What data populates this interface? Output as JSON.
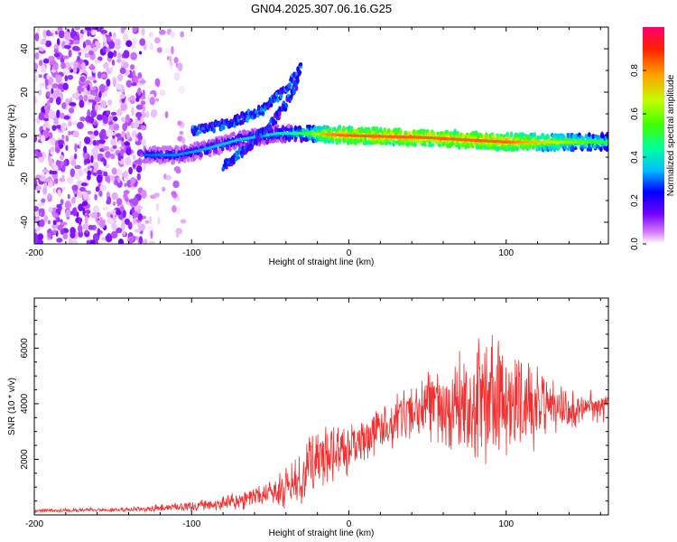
{
  "figure_title": "GN04.2025.307.06.16.G25",
  "colors": {
    "snr_line": "#f03030",
    "background": "#ffffff",
    "frame": "#000000"
  },
  "chart_data": [
    {
      "type": "heatmap",
      "title": "GN04.2025.307.06.16.G25",
      "xlabel": "Height of straight line (km)",
      "ylabel": "Frequency (Hz)",
      "xlim": [
        -200,
        165
      ],
      "ylim": [
        -50,
        50
      ],
      "x_ticks": [
        -200,
        -100,
        0,
        100
      ],
      "y_ticks": [
        -40,
        -20,
        0,
        20,
        40
      ],
      "colorbar": {
        "label": "Normalized spectral amplitude",
        "range": [
          0,
          1
        ],
        "ticks": [
          0,
          0.2,
          0.4,
          0.6,
          0.8
        ],
        "tick_labels": [
          "0.0",
          "0.2",
          "0.4",
          "0.6",
          "0.8"
        ],
        "colormap": [
          "#ffffff",
          "#d070ff",
          "#7000ff",
          "#0000ff",
          "#00c0ff",
          "#00ffa0",
          "#40ff00",
          "#c0ff00",
          "#ffa000",
          "#ff2000",
          "#ff0070"
        ]
      },
      "features": [
        {
          "name": "noise region",
          "x_range": [
            -200,
            -130
          ],
          "freq_range": [
            -50,
            50
          ],
          "amplitude": 0.15
        },
        {
          "name": "main tone",
          "points": [
            [
              -130,
              -9
            ],
            [
              -110,
              -9
            ],
            [
              -95,
              -7
            ],
            [
              -70,
              -2
            ],
            [
              -45,
              1
            ],
            [
              -30,
              1
            ],
            [
              0,
              0
            ],
            [
              50,
              -1
            ],
            [
              100,
              -3
            ],
            [
              165,
              -3
            ]
          ],
          "amplitude_profile": [
            [
              -130,
              0.35
            ],
            [
              -40,
              0.45
            ],
            [
              -25,
              0.6
            ],
            [
              -15,
              0.8
            ],
            [
              0,
              0.85
            ],
            [
              100,
              0.85
            ],
            [
              165,
              0.55
            ]
          ]
        },
        {
          "name": "upper branch",
          "points": [
            [
              -100,
              2
            ],
            [
              -75,
              6
            ],
            [
              -55,
              12
            ],
            [
              -40,
              22
            ],
            [
              -30,
              32
            ]
          ],
          "amplitude": 0.3
        },
        {
          "name": "lower branch",
          "points": [
            [
              -80,
              -14
            ],
            [
              -65,
              -6
            ],
            [
              -50,
              5
            ],
            [
              -40,
              15
            ],
            [
              -33,
              25
            ]
          ],
          "amplitude": 0.28
        }
      ]
    },
    {
      "type": "line",
      "title": "",
      "xlabel": "Height of straight line (km)",
      "ylabel": "SNR (10 * v/v)",
      "xlim": [
        -200,
        165
      ],
      "ylim": [
        0,
        7800
      ],
      "x_ticks": [
        -200,
        -100,
        0,
        100
      ],
      "y_ticks": [
        2000,
        4000,
        6000
      ],
      "series": [
        {
          "name": "SNR",
          "color": "#f03030",
          "envelope_x": [
            -200,
            -160,
            -130,
            -120,
            -100,
            -90,
            -70,
            -55,
            -45,
            -40,
            -30,
            -25,
            -20,
            -10,
            0,
            10,
            20,
            30,
            40,
            50,
            60,
            70,
            80,
            90,
            100,
            110,
            120,
            130,
            140,
            150,
            165
          ],
          "envelope_mean": [
            150,
            180,
            200,
            250,
            300,
            350,
            500,
            700,
            900,
            1000,
            1200,
            1800,
            2100,
            2200,
            2400,
            2700,
            3000,
            3400,
            3700,
            3950,
            4050,
            4150,
            4200,
            4100,
            4000,
            3900,
            3850,
            3800,
            3850,
            3900,
            3900
          ],
          "envelope_amp": [
            80,
            90,
            100,
            150,
            200,
            250,
            350,
            500,
            700,
            900,
            1100,
            1500,
            1500,
            1200,
            1000,
            1000,
            1000,
            1000,
            1100,
            1400,
            2000,
            2400,
            2600,
            2500,
            2300,
            2000,
            1700,
            1200,
            900,
            700,
            600
          ]
        }
      ]
    }
  ]
}
